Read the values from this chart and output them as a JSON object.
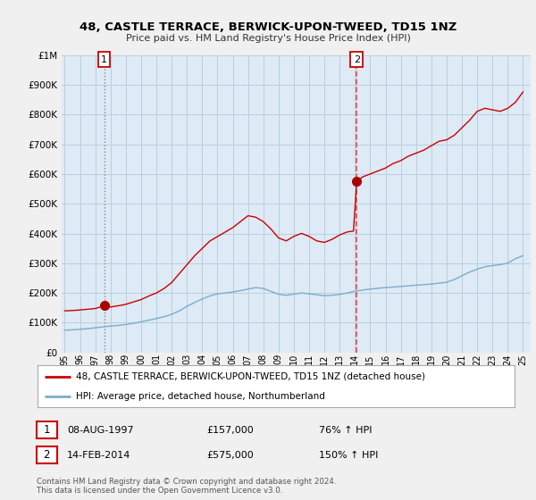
{
  "title1": "48, CASTLE TERRACE, BERWICK-UPON-TWEED, TD15 1NZ",
  "title2": "Price paid vs. HM Land Registry's House Price Index (HPI)",
  "legend_label1": "48, CASTLE TERRACE, BERWICK-UPON-TWEED, TD15 1NZ (detached house)",
  "legend_label2": "HPI: Average price, detached house, Northumberland",
  "sale1_date": "08-AUG-1997",
  "sale1_price": "£157,000",
  "sale1_hpi": "76% ↑ HPI",
  "sale2_date": "14-FEB-2014",
  "sale2_price": "£575,000",
  "sale2_hpi": "150% ↑ HPI",
  "footer": "Contains HM Land Registry data © Crown copyright and database right 2024.\nThis data is licensed under the Open Government Licence v3.0.",
  "line1_color": "#cc0000",
  "line2_color": "#7aadcc",
  "marker_color": "#aa0000",
  "vline1_color": "#cc6666",
  "vline2_color": "#ee4444",
  "bg_color": "#f0f0f0",
  "plot_bg_color": "#deeaf5",
  "grid_color": "#b8cfe0",
  "sale1_x": 1997.58,
  "sale1_y": 157000,
  "sale2_x": 2014.12,
  "sale2_y": 575000,
  "ylim": [
    0,
    1000000
  ],
  "xlim": [
    1994.8,
    2025.5
  ]
}
